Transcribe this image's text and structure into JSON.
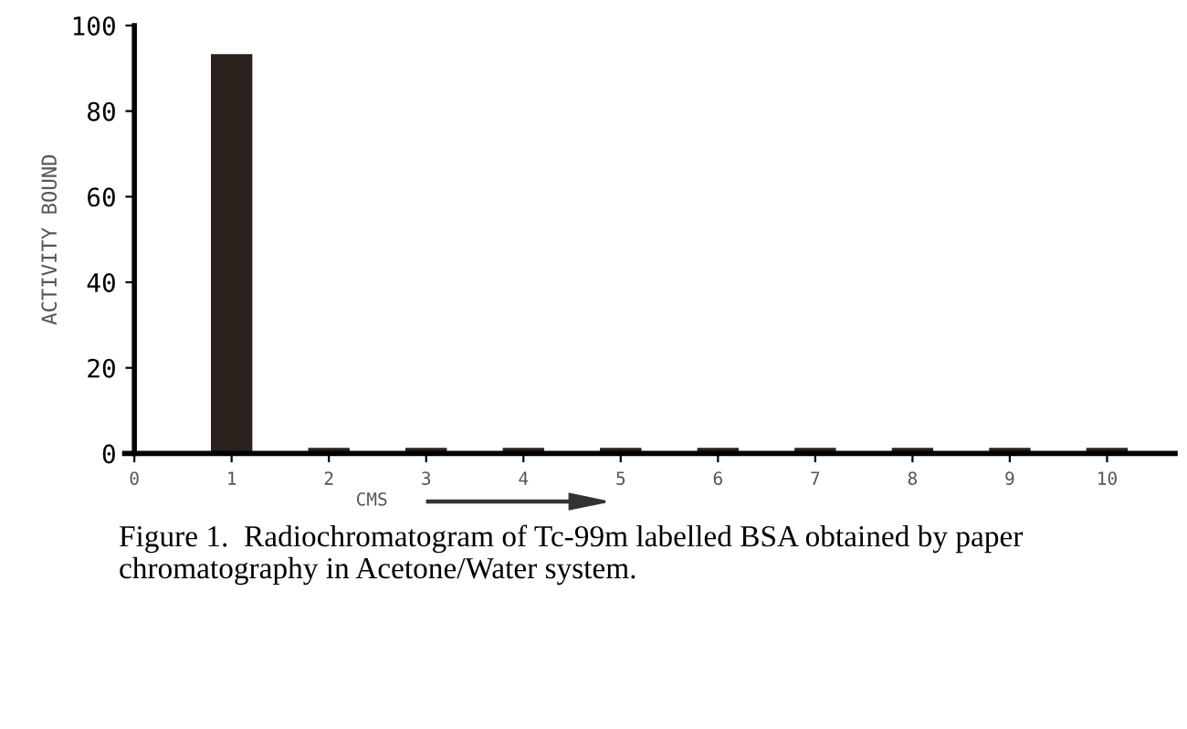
{
  "chart_data": {
    "type": "bar",
    "x": [
      1,
      2,
      3,
      4,
      5,
      6,
      7,
      8,
      9,
      10
    ],
    "values": [
      93,
      1,
      1,
      1,
      1,
      1,
      1,
      1,
      1,
      1
    ],
    "color": "#2a211c",
    "xlim": [
      -0.1,
      10.7
    ],
    "xticks": [
      0,
      1,
      2,
      3,
      4,
      5,
      6,
      7,
      8,
      9,
      10
    ],
    "ylim": [
      0,
      100
    ],
    "yticks": [
      0,
      20,
      40,
      60,
      80,
      100
    ],
    "xlabel": "CMS",
    "ylabel": "ACTIVITY BOUND",
    "grid": false,
    "legend": false,
    "annotations": [
      "Figure 1.  Radiochromatogram of Tc-99m labelled BSA obtained by paper chromatography in Acetone/Water system."
    ]
  }
}
